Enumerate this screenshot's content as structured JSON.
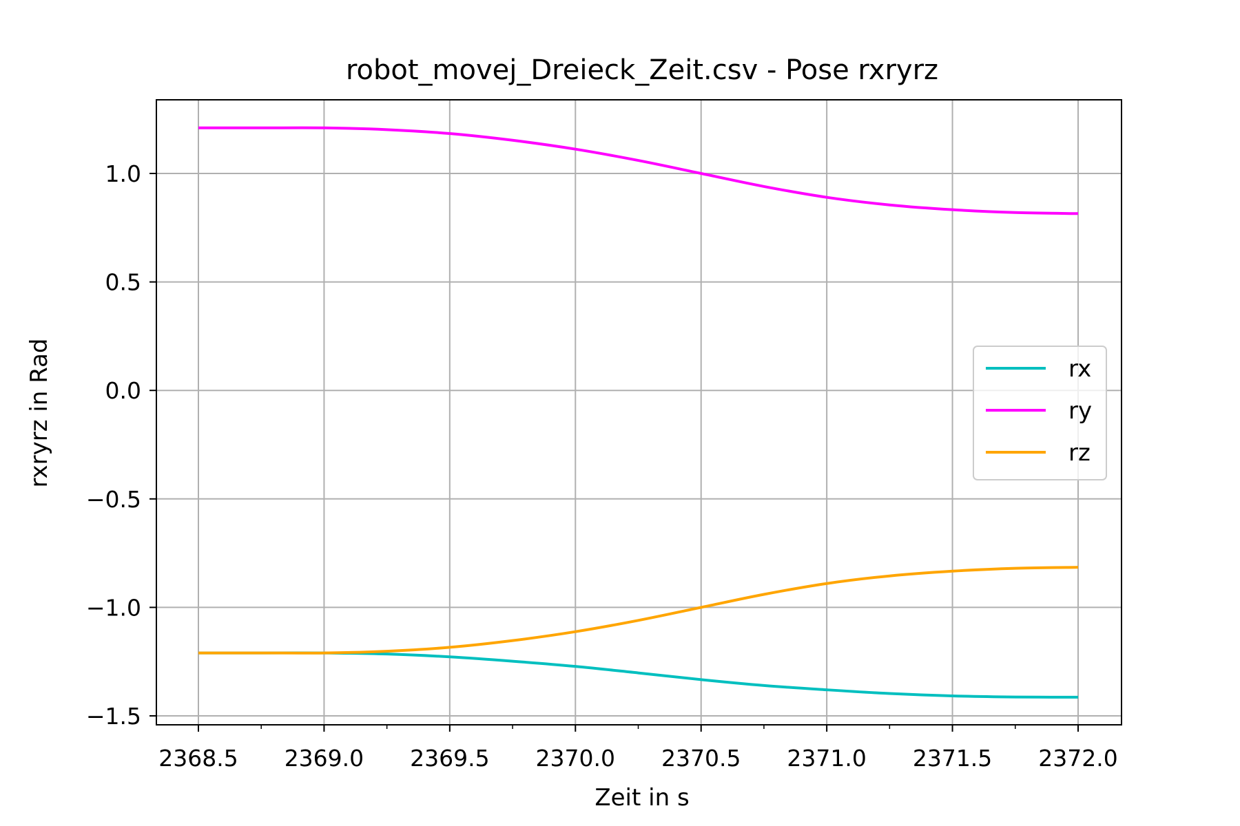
{
  "chart_data": {
    "type": "line",
    "title": "robot_movej_Dreieck_Zeit.csv - Pose rxryrz",
    "xlabel": "Zeit in s",
    "ylabel": "rxryrz in Rad",
    "xlim": [
      2368.45,
      2372.17
    ],
    "ylim": [
      -1.54,
      1.35
    ],
    "xticks": [
      2368.5,
      2369.0,
      2369.5,
      2370.0,
      2370.5,
      2371.0,
      2371.5,
      2372.0
    ],
    "xtick_labels": [
      "2368.5",
      "2369.0",
      "2369.5",
      "2370.0",
      "2370.5",
      "2371.0",
      "2371.5",
      "2372.0"
    ],
    "xminor_ticks": [
      2368.75,
      2369.25,
      2369.75,
      2370.25,
      2370.75,
      2371.25,
      2371.75
    ],
    "yticks": [
      -1.5,
      -1.0,
      -0.5,
      0.0,
      0.5,
      1.0
    ],
    "ytick_labels": [
      "−1.5",
      "−1.0",
      "−0.5",
      "0.0",
      "0.5",
      "1.0"
    ],
    "grid": true,
    "legend_position": "center-right",
    "x": [
      2368.5,
      2368.75,
      2369.0,
      2369.25,
      2369.5,
      2369.75,
      2370.0,
      2370.25,
      2370.5,
      2370.75,
      2371.0,
      2371.25,
      2371.5,
      2371.75,
      2372.0
    ],
    "series": [
      {
        "name": "rx",
        "color": "#00bfbf",
        "values": [
          -1.21,
          -1.21,
          -1.21,
          -1.215,
          -1.228,
          -1.248,
          -1.272,
          -1.302,
          -1.333,
          -1.36,
          -1.38,
          -1.397,
          -1.408,
          -1.413,
          -1.414
        ]
      },
      {
        "name": "ry",
        "color": "#ff00ff",
        "values": [
          1.21,
          1.21,
          1.21,
          1.202,
          1.184,
          1.153,
          1.112,
          1.06,
          1.0,
          0.94,
          0.89,
          0.855,
          0.833,
          0.82,
          0.815
        ]
      },
      {
        "name": "rz",
        "color": "#ffa500",
        "values": [
          -1.21,
          -1.21,
          -1.21,
          -1.202,
          -1.184,
          -1.153,
          -1.112,
          -1.06,
          -1.0,
          -0.94,
          -0.89,
          -0.855,
          -0.833,
          -0.82,
          -0.815
        ]
      }
    ]
  }
}
